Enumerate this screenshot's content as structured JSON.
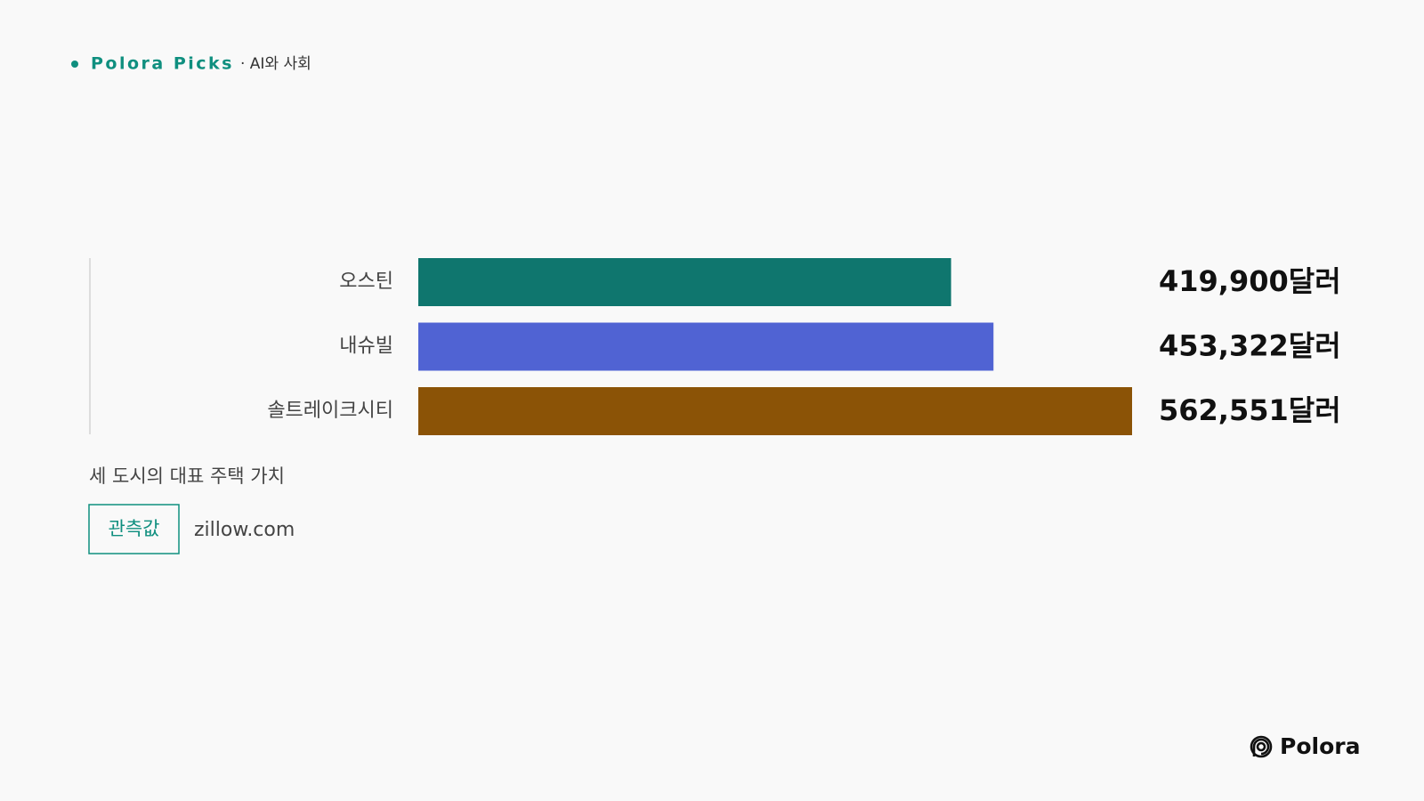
{
  "header": {
    "brand": "Polora Picks",
    "topic": "· AI와 사회"
  },
  "chart_data": {
    "type": "bar",
    "orientation": "horizontal",
    "categories": [
      "오스틴",
      "내슈빌",
      "솔트레이크시티"
    ],
    "values": [
      419900,
      453322,
      562551
    ],
    "value_labels": [
      "419,900달러",
      "453,322달러",
      "562,551달러"
    ],
    "colors": [
      "#0f766e",
      "#5063d3",
      "#8b5306"
    ],
    "caption": "세 도시의 대표 주택 가치",
    "tag": "관측값",
    "source": "zillow.com"
  },
  "footer": {
    "logo": "Polora"
  }
}
